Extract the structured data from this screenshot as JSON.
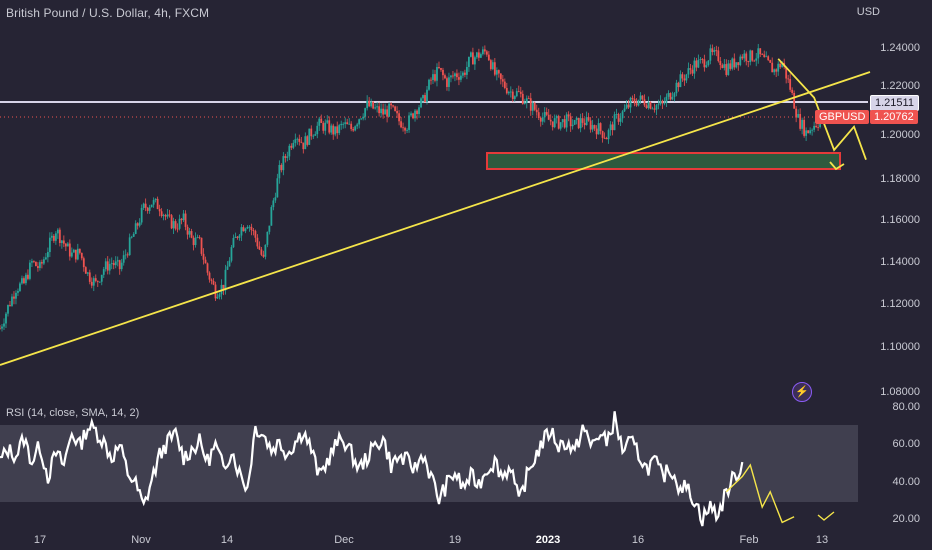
{
  "header": {
    "title": "British Pound / U.S. Dollar, 4h, FXCM",
    "currency": "USD",
    "rsi_title": "RSI (14, close, SMA, 14, 2)"
  },
  "price_axis": {
    "labels": [
      "1.24000",
      "1.22000",
      "1.20000",
      "1.18000",
      "1.16000",
      "1.14000",
      "1.12000",
      "1.10000",
      "1.08000"
    ],
    "range": [
      1.075,
      1.258
    ]
  },
  "rsi_axis": {
    "labels": [
      "80.00",
      "60.00",
      "40.00",
      "20.00"
    ],
    "range": [
      15,
      85
    ],
    "band": [
      30,
      70
    ]
  },
  "time_axis": {
    "labels": [
      "17",
      "Nov",
      "14",
      "Dec",
      "19",
      "2023",
      "16",
      "Feb",
      "13"
    ]
  },
  "badges": {
    "resistance_price": "1.21511",
    "symbol": "GBPUSD",
    "last_price": "1.20762"
  },
  "colors": {
    "background": "#262434",
    "candle_up": "#26a69a",
    "candle_down": "#ef5350",
    "trendline": "#f5e54a",
    "resistance_line": "#d7d4e8",
    "zone_fill": "#2e5a3e",
    "zone_border": "#e53a3a",
    "rsi_line": "#ffffff"
  },
  "annotations": {
    "resistance_level": 1.21511,
    "support_zone": [
      1.1838,
      1.1912
    ],
    "current_price": 1.20762
  },
  "chart_data": {
    "type": "candlestick",
    "title": "British Pound / U.S. Dollar, 4h, FXCM",
    "symbol": "GBPUSD",
    "timeframe": "4h",
    "x_ticks": [
      "17",
      "Nov",
      "14",
      "Dec",
      "19",
      "2023",
      "16",
      "Feb",
      "13"
    ],
    "y_range": [
      1.075,
      1.258
    ],
    "close_path": [
      [
        0,
        1.099
      ],
      [
        4,
        1.11
      ],
      [
        8,
        1.12
      ],
      [
        12,
        1.122
      ],
      [
        16,
        1.133
      ],
      [
        20,
        1.13
      ],
      [
        24,
        1.14
      ],
      [
        28,
        1.15
      ],
      [
        32,
        1.143
      ],
      [
        36,
        1.137
      ],
      [
        40,
        1.138
      ],
      [
        44,
        1.127
      ],
      [
        48,
        1.122
      ],
      [
        52,
        1.13
      ],
      [
        56,
        1.133
      ],
      [
        60,
        1.13
      ],
      [
        64,
        1.14
      ],
      [
        68,
        1.15
      ],
      [
        72,
        1.161
      ],
      [
        76,
        1.164
      ],
      [
        80,
        1.162
      ],
      [
        84,
        1.155
      ],
      [
        88,
        1.152
      ],
      [
        92,
        1.155
      ],
      [
        96,
        1.145
      ],
      [
        100,
        1.143
      ],
      [
        104,
        1.128
      ],
      [
        108,
        1.118
      ],
      [
        112,
        1.121
      ],
      [
        116,
        1.14
      ],
      [
        120,
        1.15
      ],
      [
        124,
        1.154
      ],
      [
        128,
        1.146
      ],
      [
        132,
        1.134
      ],
      [
        136,
        1.16
      ],
      [
        140,
        1.18
      ],
      [
        144,
        1.19
      ],
      [
        148,
        1.2
      ],
      [
        152,
        1.194
      ],
      [
        156,
        1.2
      ],
      [
        160,
        1.204
      ],
      [
        164,
        1.203
      ],
      [
        168,
        1.2
      ],
      [
        172,
        1.204
      ],
      [
        176,
        1.202
      ],
      [
        180,
        1.208
      ],
      [
        184,
        1.214
      ],
      [
        188,
        1.212
      ],
      [
        192,
        1.21
      ],
      [
        196,
        1.212
      ],
      [
        200,
        1.206
      ],
      [
        204,
        1.204
      ],
      [
        208,
        1.212
      ],
      [
        212,
        1.216
      ],
      [
        216,
        1.227
      ],
      [
        220,
        1.232
      ],
      [
        224,
        1.226
      ],
      [
        228,
        1.23
      ],
      [
        232,
        1.23
      ],
      [
        236,
        1.238
      ],
      [
        240,
        1.24
      ],
      [
        244,
        1.242
      ],
      [
        248,
        1.23
      ],
      [
        252,
        1.225
      ],
      [
        256,
        1.221
      ],
      [
        260,
        1.22
      ],
      [
        264,
        1.216
      ],
      [
        268,
        1.212
      ],
      [
        272,
        1.208
      ],
      [
        276,
        1.206
      ],
      [
        280,
        1.205
      ],
      [
        284,
        1.206
      ],
      [
        288,
        1.204
      ],
      [
        292,
        1.206
      ],
      [
        296,
        1.204
      ],
      [
        300,
        1.202
      ],
      [
        304,
        1.198
      ],
      [
        308,
        1.206
      ],
      [
        312,
        1.21
      ],
      [
        316,
        1.215
      ],
      [
        320,
        1.217
      ],
      [
        324,
        1.216
      ],
      [
        328,
        1.214
      ],
      [
        332,
        1.214
      ],
      [
        336,
        1.22
      ],
      [
        340,
        1.226
      ],
      [
        344,
        1.23
      ],
      [
        348,
        1.235
      ],
      [
        352,
        1.236
      ],
      [
        356,
        1.24
      ],
      [
        360,
        1.239
      ],
      [
        364,
        1.233
      ],
      [
        368,
        1.236
      ],
      [
        372,
        1.24
      ],
      [
        376,
        1.239
      ],
      [
        380,
        1.24
      ],
      [
        384,
        1.236
      ],
      [
        388,
        1.232
      ],
      [
        392,
        1.236
      ],
      [
        396,
        1.223
      ],
      [
        400,
        1.207
      ],
      [
        404,
        1.2
      ],
      [
        408,
        1.204
      ],
      [
        412,
        1.207
      ]
    ],
    "rsi": [
      [
        0,
        52
      ],
      [
        4,
        58
      ],
      [
        8,
        55
      ],
      [
        12,
        64
      ],
      [
        16,
        52
      ],
      [
        20,
        60
      ],
      [
        24,
        44
      ],
      [
        28,
        56
      ],
      [
        32,
        50
      ],
      [
        36,
        67
      ],
      [
        40,
        60
      ],
      [
        44,
        70
      ],
      [
        48,
        68
      ],
      [
        52,
        62
      ],
      [
        56,
        54
      ],
      [
        60,
        60
      ],
      [
        64,
        46
      ],
      [
        68,
        40
      ],
      [
        72,
        28
      ],
      [
        76,
        42
      ],
      [
        80,
        55
      ],
      [
        84,
        62
      ],
      [
        88,
        66
      ],
      [
        92,
        54
      ],
      [
        96,
        58
      ],
      [
        100,
        62
      ],
      [
        104,
        52
      ],
      [
        108,
        60
      ],
      [
        112,
        48
      ],
      [
        116,
        58
      ],
      [
        120,
        46
      ],
      [
        124,
        38
      ],
      [
        128,
        70
      ],
      [
        132,
        66
      ],
      [
        136,
        58
      ],
      [
        140,
        62
      ],
      [
        144,
        56
      ],
      [
        148,
        62
      ],
      [
        152,
        68
      ],
      [
        156,
        58
      ],
      [
        160,
        44
      ],
      [
        164,
        52
      ],
      [
        168,
        60
      ],
      [
        172,
        64
      ],
      [
        176,
        56
      ],
      [
        180,
        48
      ],
      [
        184,
        54
      ],
      [
        188,
        60
      ],
      [
        192,
        64
      ],
      [
        196,
        50
      ],
      [
        200,
        54
      ],
      [
        204,
        52
      ],
      [
        208,
        48
      ],
      [
        212,
        56
      ],
      [
        216,
        44
      ],
      [
        220,
        32
      ],
      [
        224,
        40
      ],
      [
        228,
        46
      ],
      [
        232,
        38
      ],
      [
        236,
        44
      ],
      [
        240,
        40
      ],
      [
        244,
        48
      ],
      [
        248,
        52
      ],
      [
        252,
        44
      ],
      [
        256,
        50
      ],
      [
        260,
        30
      ],
      [
        264,
        44
      ],
      [
        268,
        54
      ],
      [
        272,
        62
      ],
      [
        276,
        68
      ],
      [
        280,
        60
      ],
      [
        284,
        62
      ],
      [
        288,
        56
      ],
      [
        292,
        70
      ],
      [
        296,
        60
      ],
      [
        300,
        66
      ],
      [
        304,
        62
      ],
      [
        308,
        74
      ],
      [
        312,
        58
      ],
      [
        316,
        62
      ],
      [
        320,
        56
      ],
      [
        324,
        48
      ],
      [
        328,
        52
      ],
      [
        332,
        44
      ],
      [
        336,
        48
      ],
      [
        340,
        40
      ],
      [
        344,
        38
      ],
      [
        348,
        32
      ],
      [
        352,
        22
      ],
      [
        356,
        28
      ],
      [
        360,
        24
      ],
      [
        364,
        36
      ],
      [
        368,
        44
      ],
      [
        372,
        50
      ]
    ],
    "trendline": {
      "from": [
        0,
        1.094
      ],
      "to": [
        428,
        1.227
      ]
    },
    "resistance": 1.21511,
    "support_zone": [
      1.1838,
      1.1912
    ],
    "projection_path": [
      [
        390,
        1.238
      ],
      [
        408,
        1.218
      ],
      [
        418,
        1.191
      ],
      [
        428,
        1.203
      ],
      [
        434,
        1.186
      ]
    ],
    "rsi_projection": [
      [
        364,
        36
      ],
      [
        372,
        44
      ],
      [
        376,
        50
      ],
      [
        382,
        28
      ],
      [
        386,
        36
      ],
      [
        392,
        20
      ],
      [
        398,
        23
      ]
    ]
  }
}
